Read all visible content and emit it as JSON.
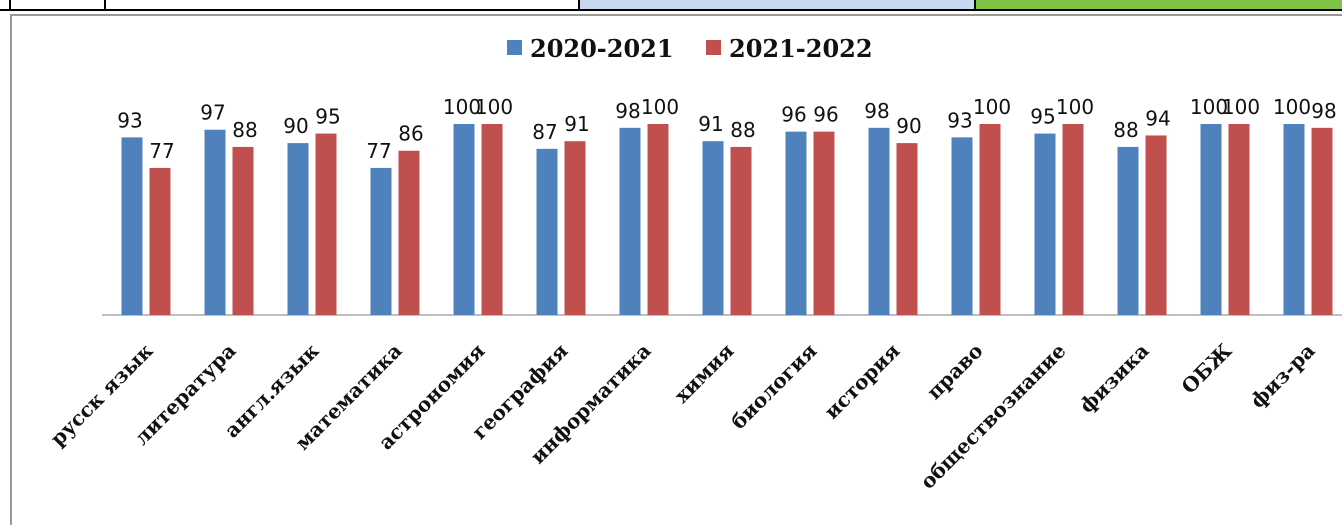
{
  "colors": {
    "series_2020": "#4f81bd",
    "series_2021": "#c0504d",
    "strip_blue": "#c6d9f1",
    "strip_green": "#7dc242",
    "axis": "#bfbfbf"
  },
  "chart_data": {
    "type": "bar",
    "categories": [
      "русск язык",
      "литература",
      "англ.язык",
      "математика",
      "астрономия",
      "география",
      "информатика",
      "химия",
      "биология",
      "история",
      "право",
      "обществознание",
      "физика",
      "ОБЖ",
      "физ-ра"
    ],
    "series": [
      {
        "name": "2020-2021",
        "values": [
          93,
          97,
          90,
          77,
          100,
          87,
          98,
          91,
          96,
          98,
          93,
          95,
          88,
          100,
          100
        ]
      },
      {
        "name": "2021-2022",
        "values": [
          77,
          88,
          95,
          86,
          100,
          91,
          100,
          88,
          96,
          90,
          100,
          100,
          94,
          100,
          98
        ]
      }
    ],
    "ylim": [
      0,
      110
    ],
    "legend_position": "top-center",
    "grid": false
  }
}
